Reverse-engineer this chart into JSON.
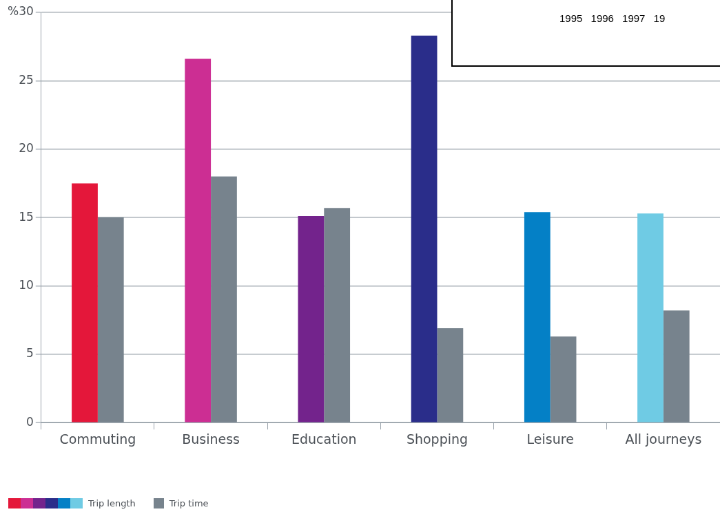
{
  "chart_data": {
    "type": "bar",
    "categories": [
      "Commuting",
      "Business",
      "Education",
      "Shopping",
      "Leisure",
      "All journeys"
    ],
    "series": [
      {
        "name": "Trip length",
        "colors": [
          "#e4173a",
          "#cc2e93",
          "#73238c",
          "#2a2d8a",
          "#0480c6",
          "#6fcbe4"
        ],
        "values": [
          17.5,
          26.6,
          15.1,
          28.3,
          15.4,
          15.3
        ]
      },
      {
        "name": "Trip time",
        "color": "#77838d",
        "values": [
          15,
          18,
          15.7,
          6.9,
          6.3,
          8.2
        ]
      }
    ],
    "ylim": [
      0,
      30
    ],
    "yticks": [
      0,
      5,
      10,
      15,
      20,
      25,
      {
        "value": 30,
        "label": "%30"
      }
    ],
    "grid": "y",
    "legend": "bottom",
    "annotations": [
      "1995 1996 1997 19"
    ]
  }
}
